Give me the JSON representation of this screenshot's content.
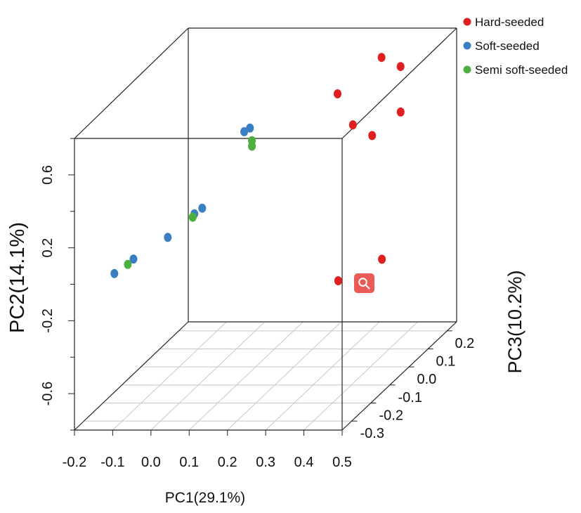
{
  "chart_data": {
    "type": "scatter",
    "projection": "3d",
    "xlabel": "PC1(29.1%)",
    "ylabel": "PC2(14.1%)",
    "zlabel": "PC3(10.2%)",
    "xlim": [
      -0.2,
      0.5
    ],
    "ylim": [
      -0.8,
      0.8
    ],
    "zlim": [
      -0.35,
      0.25
    ],
    "x_ticks": [
      "-0.2",
      "-0.1",
      "0.0",
      "0.1",
      "0.2",
      "0.3",
      "0.4",
      "0.5"
    ],
    "y_ticks": [
      "-0.6",
      "-0.2",
      "0.2",
      "0.6"
    ],
    "z_ticks": [
      "-0.3",
      "-0.2",
      "-0.1",
      "0.0",
      "0.1",
      "0.2"
    ],
    "grid": "floor only",
    "legend_position": "top-right",
    "series": [
      {
        "name": "Hard-seeded",
        "color": "#e02020",
        "points": [
          {
            "x": 0.24,
            "y": 0.55,
            "z": 0.15
          },
          {
            "x": 0.28,
            "y": 0.38,
            "z": 0.15
          },
          {
            "x": 0.38,
            "y": 0.42,
            "z": 0.05
          },
          {
            "x": 0.39,
            "y": 0.67,
            "z": 0.18
          },
          {
            "x": 0.41,
            "y": 0.46,
            "z": 0.14
          },
          {
            "x": 0.35,
            "y": 0.74,
            "z": 0.16
          },
          {
            "x": 0.46,
            "y": -0.04,
            "z": -0.29
          },
          {
            "x": 0.48,
            "y": -0.11,
            "z": -0.1
          }
        ]
      },
      {
        "name": "Soft-seeded",
        "color": "#3a7fc1",
        "points": [
          {
            "x": -0.17,
            "y": -0.09,
            "z": -0.2
          },
          {
            "x": -0.12,
            "y": -0.01,
            "z": -0.2
          },
          {
            "x": -0.09,
            "y": -0.01,
            "z": -0.08
          },
          {
            "x": -0.07,
            "y": 0.02,
            "z": 0.02
          },
          {
            "x": 0.01,
            "y": 0.17,
            "z": -0.1
          },
          {
            "x": 0.1,
            "y": 0.55,
            "z": -0.06
          },
          {
            "x": 0.12,
            "y": 0.58,
            "z": -0.07
          }
        ]
      },
      {
        "name": "Semi soft-seeded",
        "color": "#4caf3f",
        "points": [
          {
            "x": -0.12,
            "y": -0.01,
            "z": -0.23
          },
          {
            "x": 0.01,
            "y": 0.17,
            "z": -0.15
          },
          {
            "x": 0.15,
            "y": 0.53,
            "z": -0.12
          },
          {
            "x": 0.15,
            "y": 0.56,
            "z": -0.12
          }
        ]
      }
    ]
  },
  "icons": {
    "zoom": "magnifier-zoom-icon"
  }
}
